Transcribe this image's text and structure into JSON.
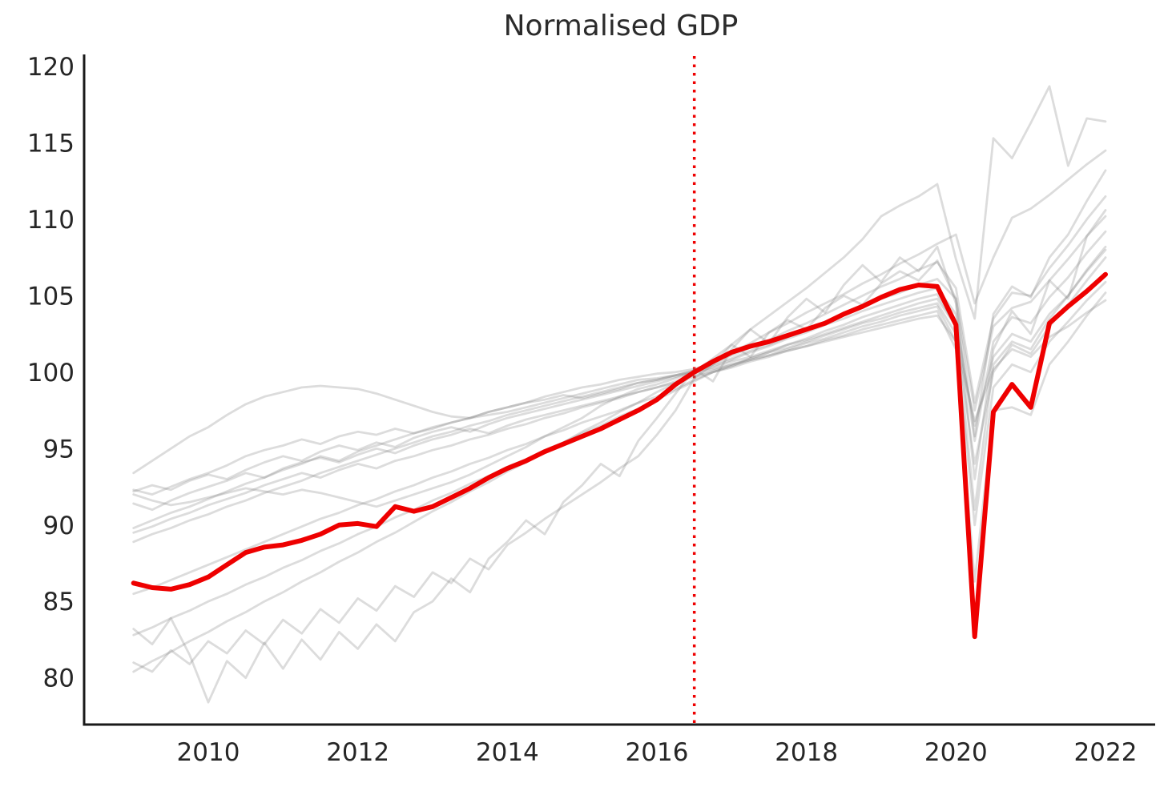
{
  "title": "Normalised GDP",
  "colors": {
    "highlight": "#ee0000",
    "reference_line": "#ee0000",
    "comparator": "rgba(130,130,130,0.28)",
    "axis": "#1a1a1a",
    "text": "#262626",
    "background": "#ffffff"
  },
  "chart_data": {
    "type": "line",
    "title": "Normalised GDP",
    "x_axis": {
      "ticks": [
        "2010",
        "2012",
        "2014",
        "2016",
        "2018",
        "2020",
        "2022"
      ],
      "tick_values": [
        2010,
        2012,
        2014,
        2016,
        2018,
        2020,
        2022
      ],
      "range": [
        2009.0,
        2022.0
      ],
      "frequency": "quarterly"
    },
    "y_axis": {
      "ticks": [
        "80",
        "85",
        "90",
        "95",
        "100",
        "105",
        "110",
        "115",
        "120"
      ],
      "tick_values": [
        80,
        85,
        90,
        95,
        100,
        105,
        110,
        115,
        120
      ],
      "range_shown": [
        80,
        120
      ]
    },
    "grid": false,
    "legend": false,
    "reference_line": {
      "x": 2016.5,
      "orientation": "vertical",
      "style": "dotted",
      "color": "#ee0000"
    },
    "x_start": 2009.0,
    "x_step": 0.25,
    "x_end": 2022.0,
    "series": [
      {
        "name": "comparator-01",
        "role": "background",
        "values": [
          92.0,
          91.6,
          91.3,
          91.5,
          91.8,
          92.1,
          92.4,
          92.2,
          92.0,
          92.3,
          92.1,
          91.8,
          91.5,
          91.2,
          91.6,
          92.0,
          92.4,
          92.8,
          93.3,
          93.9,
          94.5,
          95.1,
          95.8,
          96.4,
          97.0,
          97.8,
          98.4,
          98.9,
          99.2,
          99.6,
          100.0,
          100.9,
          101.8,
          102.8,
          103.7,
          104.6,
          105.5,
          106.5,
          107.5,
          108.7,
          110.2,
          110.9,
          111.5,
          112.3,
          107.4,
          103.5,
          115.3,
          114.0,
          116.3,
          118.7,
          113.5,
          116.6,
          116.4
        ]
      },
      {
        "name": "comparator-02",
        "role": "background",
        "values": [
          80.4,
          81.1,
          81.7,
          82.4,
          83.0,
          83.7,
          84.3,
          85.0,
          85.6,
          86.3,
          86.9,
          87.6,
          88.2,
          88.9,
          89.5,
          90.2,
          90.9,
          91.5,
          92.2,
          92.8,
          93.5,
          94.1,
          94.8,
          95.4,
          96.1,
          96.7,
          97.4,
          98.0,
          98.7,
          99.3,
          100.0,
          100.6,
          101.3,
          101.9,
          102.6,
          103.2,
          103.9,
          104.5,
          105.1,
          105.8,
          106.4,
          107.1,
          107.7,
          108.4,
          109.0,
          104.5,
          107.5,
          110.1,
          110.7,
          111.6,
          112.6,
          113.6,
          114.5
        ]
      },
      {
        "name": "comparator-03",
        "role": "background",
        "values": [
          83.2,
          82.2,
          83.9,
          81.5,
          78.4,
          81.1,
          80.0,
          82.3,
          80.6,
          82.5,
          81.2,
          83.0,
          81.9,
          83.5,
          82.4,
          84.3,
          85.0,
          86.5,
          85.6,
          87.8,
          88.9,
          90.3,
          89.4,
          91.5,
          92.6,
          94.0,
          93.2,
          95.5,
          97.0,
          98.6,
          100.2,
          99.4,
          101.5,
          102.8,
          101.9,
          103.6,
          104.8,
          103.9,
          105.7,
          107.0,
          105.9,
          107.5,
          106.6,
          108.2,
          104.5,
          93.0,
          101.5,
          104.0,
          102.5,
          106.0,
          104.8,
          108.9,
          110.6
        ]
      },
      {
        "name": "comparator-04",
        "role": "background",
        "values": [
          93.4,
          94.2,
          95.0,
          95.8,
          96.4,
          97.2,
          97.9,
          98.4,
          98.7,
          99.0,
          99.1,
          99.0,
          98.9,
          98.6,
          98.2,
          97.8,
          97.4,
          97.1,
          97.0,
          97.2,
          97.4,
          97.7,
          98.0,
          98.3,
          98.6,
          98.9,
          99.2,
          99.5,
          99.6,
          99.8,
          100.0,
          100.2,
          100.5,
          100.8,
          101.1,
          101.4,
          101.7,
          102.0,
          102.3,
          102.6,
          102.9,
          103.2,
          103.5,
          103.7,
          102.0,
          96.8,
          100.2,
          101.5,
          101.0,
          102.3,
          103.0,
          103.9,
          104.7
        ]
      },
      {
        "name": "comparator-05",
        "role": "background",
        "values": [
          92.3,
          92.0,
          92.5,
          93.0,
          93.4,
          93.9,
          94.5,
          94.9,
          95.2,
          95.6,
          95.3,
          95.8,
          96.1,
          95.9,
          96.3,
          96.0,
          96.4,
          96.7,
          97.0,
          97.4,
          97.7,
          98.0,
          98.2,
          98.5,
          98.3,
          98.6,
          98.9,
          99.3,
          99.5,
          99.8,
          100.1,
          100.4,
          100.8,
          101.3,
          101.7,
          102.2,
          102.6,
          103.1,
          103.5,
          104.0,
          104.4,
          104.8,
          105.2,
          105.5,
          103.8,
          95.5,
          102.0,
          103.6,
          103.2,
          104.9,
          106.2,
          107.8,
          109.2
        ]
      },
      {
        "name": "comparator-06",
        "role": "background",
        "values": [
          92.2,
          92.6,
          92.3,
          92.9,
          93.3,
          93.0,
          93.6,
          94.1,
          94.5,
          94.2,
          94.8,
          95.2,
          94.9,
          95.4,
          95.1,
          95.7,
          96.1,
          96.4,
          96.1,
          96.6,
          97.0,
          97.3,
          97.6,
          97.9,
          98.2,
          98.5,
          98.8,
          99.1,
          99.4,
          99.7,
          100.0,
          100.3,
          100.7,
          101.0,
          101.4,
          101.8,
          102.1,
          102.5,
          102.9,
          103.3,
          103.7,
          104.1,
          104.5,
          104.8,
          103.0,
          96.5,
          101.0,
          102.5,
          102.0,
          103.8,
          105.0,
          106.7,
          108.2
        ]
      },
      {
        "name": "comparator-07",
        "role": "background",
        "values": [
          91.4,
          91.0,
          91.6,
          92.1,
          92.5,
          92.9,
          93.4,
          93.1,
          93.7,
          94.1,
          94.4,
          94.1,
          94.6,
          95.0,
          94.7,
          95.2,
          95.6,
          95.9,
          96.3,
          96.0,
          96.5,
          96.9,
          97.2,
          97.5,
          97.8,
          98.1,
          98.4,
          98.7,
          99.0,
          99.4,
          99.8,
          100.1,
          100.5,
          100.9,
          101.3,
          101.6,
          102.0,
          102.4,
          102.8,
          103.2,
          103.5,
          103.9,
          104.2,
          104.5,
          102.5,
          94.0,
          100.0,
          101.8,
          101.2,
          103.0,
          104.4,
          106.0,
          107.5
        ]
      },
      {
        "name": "comparator-08",
        "role": "background",
        "values": [
          89.8,
          90.3,
          90.8,
          91.2,
          91.7,
          92.2,
          92.7,
          93.1,
          93.6,
          94.0,
          94.5,
          94.2,
          94.8,
          95.2,
          95.6,
          96.0,
          96.3,
          96.7,
          97.0,
          97.4,
          97.7,
          98.0,
          98.4,
          98.7,
          99.0,
          99.2,
          99.5,
          99.7,
          99.9,
          100.0,
          100.2,
          100.6,
          101.1,
          101.6,
          102.1,
          102.7,
          103.2,
          103.8,
          104.4,
          105.0,
          105.6,
          106.1,
          106.7,
          107.2,
          105.5,
          98.0,
          103.5,
          105.2,
          105.0,
          106.8,
          108.3,
          110.0,
          111.5
        ]
      },
      {
        "name": "comparator-09",
        "role": "background",
        "values": [
          89.5,
          89.9,
          90.4,
          90.8,
          91.3,
          91.7,
          92.1,
          92.6,
          93.0,
          93.4,
          93.1,
          93.6,
          94.0,
          93.7,
          94.2,
          94.5,
          94.9,
          95.2,
          95.6,
          95.9,
          96.3,
          96.6,
          97.0,
          97.3,
          97.7,
          98.0,
          98.3,
          98.7,
          99.0,
          99.3,
          99.7,
          100.0,
          100.4,
          100.8,
          101.1,
          101.5,
          101.9,
          102.2,
          102.6,
          103.0,
          103.3,
          103.7,
          104.0,
          104.3,
          102.0,
          90.0,
          99.0,
          100.5,
          100.0,
          102.0,
          103.3,
          104.7,
          105.9
        ]
      },
      {
        "name": "comparator-10",
        "role": "background",
        "values": [
          88.9,
          89.4,
          89.8,
          90.3,
          90.7,
          91.2,
          91.6,
          92.1,
          92.5,
          92.9,
          93.4,
          93.8,
          94.2,
          94.6,
          95.0,
          95.4,
          95.8,
          96.1,
          96.5,
          96.8,
          97.2,
          97.5,
          97.8,
          98.1,
          98.4,
          98.7,
          99.0,
          99.3,
          99.5,
          99.8,
          100.1,
          100.5,
          100.9,
          101.4,
          101.8,
          102.3,
          102.8,
          103.3,
          103.8,
          104.3,
          104.8,
          105.2,
          105.7,
          106.1,
          104.8,
          97.5,
          103.0,
          104.2,
          104.6,
          106.0,
          107.4,
          108.9,
          110.2
        ]
      },
      {
        "name": "comparator-11",
        "role": "background",
        "values": [
          85.5,
          85.9,
          86.4,
          86.9,
          87.4,
          87.9,
          88.4,
          88.9,
          89.4,
          89.9,
          90.4,
          90.8,
          91.3,
          91.7,
          92.2,
          92.6,
          93.1,
          93.5,
          94.0,
          94.4,
          94.9,
          95.3,
          95.8,
          96.2,
          96.7,
          97.1,
          97.5,
          98.0,
          98.4,
          98.9,
          99.5,
          100.0,
          100.4,
          100.9,
          101.3,
          101.8,
          102.2,
          102.7,
          103.1,
          103.6,
          104.0,
          104.4,
          104.8,
          105.1,
          103.0,
          91.0,
          100.5,
          102.0,
          101.5,
          103.5,
          105.0,
          106.6,
          108.0
        ]
      },
      {
        "name": "comparator-12",
        "role": "background",
        "values": [
          82.8,
          83.3,
          83.9,
          84.4,
          85.0,
          85.5,
          86.1,
          86.6,
          87.2,
          87.7,
          88.3,
          88.8,
          89.4,
          89.9,
          90.5,
          91.0,
          91.6,
          92.1,
          92.7,
          93.2,
          93.8,
          94.3,
          94.9,
          95.4,
          96.0,
          96.5,
          97.1,
          97.6,
          98.2,
          98.8,
          99.4,
          100.0,
          100.3,
          100.7,
          101.0,
          101.4,
          101.7,
          102.1,
          102.4,
          102.8,
          103.1,
          103.4,
          103.7,
          104.0,
          101.5,
          86.3,
          97.5,
          97.7,
          97.2,
          100.5,
          102.0,
          103.7,
          105.2
        ]
      },
      {
        "name": "comparator-13",
        "role": "background",
        "values": [
          81.0,
          80.4,
          81.8,
          80.9,
          82.4,
          81.6,
          83.1,
          82.2,
          83.8,
          82.9,
          84.5,
          83.6,
          85.2,
          84.4,
          86.0,
          85.3,
          86.9,
          86.2,
          87.8,
          87.1,
          88.7,
          89.5,
          90.4,
          91.2,
          92.0,
          92.8,
          93.7,
          94.5,
          95.9,
          97.5,
          99.6,
          100.5,
          101.8,
          101.0,
          102.6,
          103.4,
          102.8,
          104.2,
          105.0,
          104.4,
          105.8,
          106.6,
          106.0,
          107.3,
          104.8,
          95.8,
          103.8,
          105.6,
          104.9,
          107.5,
          109.0,
          111.2,
          113.2
        ]
      },
      {
        "name": "highlighted-series",
        "role": "highlight",
        "values": [
          86.2,
          85.9,
          85.8,
          86.1,
          86.6,
          87.4,
          88.2,
          88.55,
          88.7,
          89.0,
          89.4,
          90.0,
          90.1,
          89.9,
          91.2,
          90.9,
          91.2,
          91.8,
          92.4,
          93.1,
          93.7,
          94.2,
          94.8,
          95.3,
          95.8,
          96.3,
          96.9,
          97.5,
          98.2,
          99.2,
          100.0,
          100.7,
          101.3,
          101.7,
          102.0,
          102.4,
          102.8,
          103.2,
          103.8,
          104.3,
          104.9,
          105.4,
          105.7,
          105.6,
          103.1,
          82.7,
          97.4,
          99.2,
          97.7,
          103.2,
          104.3,
          105.3,
          106.4
        ]
      }
    ]
  }
}
